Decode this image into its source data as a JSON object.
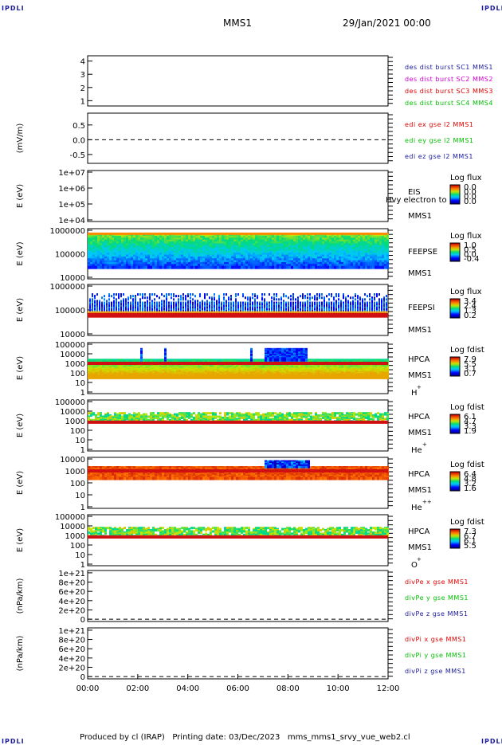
{
  "header": {
    "logo": "IPDLI",
    "title": "MMS1",
    "datetime": "29/Jan/2021 00:00"
  },
  "footer": {
    "text": "Produced by cl (IRAP)   Printing date: 03/Dec/2023   mms_mms1_srvy_vue_web2.cl"
  },
  "colors": {
    "series_blue": "#1a1aa0",
    "series_magenta": "#d000d0",
    "series_red": "#e00000",
    "series_green": "#00c000",
    "frame": "#000000"
  },
  "chart_data": [
    {
      "type": "scatter",
      "xlabel": "",
      "ylabel": "",
      "ylim": [
        0.6,
        4.4
      ],
      "yticks": [
        "1",
        "2",
        "3",
        "4"
      ],
      "legend": [
        {
          "label": "des dist burst SC1 MMS1",
          "color": "#1a1aa0"
        },
        {
          "label": "des dist burst SC2 MMS2",
          "color": "#d000d0"
        },
        {
          "label": "des dist burst SC3 MMS3",
          "color": "#e00000"
        },
        {
          "label": "des dist burst SC4 MMS4",
          "color": "#00c000"
        }
      ],
      "series": []
    },
    {
      "type": "line",
      "ylabel": "(mV/m)",
      "ylim": [
        -0.8,
        0.9
      ],
      "yticks": [
        "0.5",
        "0.0",
        "-0.5"
      ],
      "zero_line": true,
      "legend": [
        {
          "label": "edi ex gse l2 MMS1",
          "color": "#e00000"
        },
        {
          "label": "edi ey gse l2 MMS1",
          "color": "#00c000"
        },
        {
          "label": "edi ez gse l2 MMS1",
          "color": "#1a1aa0"
        }
      ],
      "series": []
    },
    {
      "type": "heatmap",
      "ylabel": "E (eV)",
      "log_y": true,
      "yticks": [
        "1e+07",
        "1e+06",
        "1e+05",
        "1e+04"
      ],
      "instrument": "EIS",
      "species": "Hvy electron to",
      "spacecraft": "MMS1",
      "colorbar_title": "Log flux",
      "colorbar_ticks": [
        "0.0",
        "0.0",
        "0.0",
        "0.0"
      ],
      "values": []
    },
    {
      "type": "heatmap",
      "ylabel": "E (eV)",
      "log_y": true,
      "yticks": [
        "1000000",
        "100000",
        "10000"
      ],
      "instrument": "FEEPSE",
      "spacecraft": "MMS1",
      "colorbar_title": "Log flux",
      "colorbar_ticks": [
        "1.0",
        "0.5",
        "0.0",
        "-0.4"
      ],
      "energy_range_eV": [
        30000,
        700000
      ]
    },
    {
      "type": "heatmap",
      "ylabel": "E (eV)",
      "log_y": true,
      "yticks": [
        "1000000",
        "100000",
        "10000"
      ],
      "instrument": "FEEPSI",
      "spacecraft": "MMS1",
      "colorbar_title": "Log flux",
      "colorbar_ticks": [
        "3.4",
        "2.4",
        "1.3",
        "0.2"
      ],
      "energy_range_eV": [
        50000,
        500000
      ]
    },
    {
      "type": "heatmap",
      "ylabel": "E (eV)",
      "log_y": true,
      "yticks": [
        "100000",
        "10000",
        "1000",
        "100",
        "10",
        "1"
      ],
      "instrument": "HPCA",
      "spacecraft": "MMS1",
      "species": "H",
      "species_charge": "+",
      "colorbar_title": "Log fdist",
      "colorbar_ticks": [
        "7.9",
        "5.5",
        "3.1",
        "0.7"
      ]
    },
    {
      "type": "heatmap",
      "ylabel": "E (eV)",
      "log_y": true,
      "yticks": [
        "100000",
        "10000",
        "1000",
        "100",
        "10",
        "1"
      ],
      "instrument": "HPCA",
      "spacecraft": "MMS1",
      "species": "He",
      "species_charge": "+",
      "colorbar_title": "Log fdist",
      "colorbar_ticks": [
        "6.1",
        "4.7",
        "3.3",
        "1.9"
      ]
    },
    {
      "type": "heatmap",
      "ylabel": "E (eV)",
      "log_y": true,
      "yticks": [
        "10000",
        "1000",
        "100",
        "10",
        "1"
      ],
      "instrument": "HPCA",
      "spacecraft": "MMS1",
      "species": "He",
      "species_charge": "++",
      "colorbar_title": "Log fdist",
      "colorbar_ticks": [
        "6.4",
        "4.8",
        "3.2",
        "1.6"
      ]
    },
    {
      "type": "heatmap",
      "ylabel": "E (eV)",
      "log_y": true,
      "yticks": [
        "100000",
        "10000",
        "1000",
        "100",
        "10",
        "1"
      ],
      "instrument": "HPCA",
      "spacecraft": "MMS1",
      "species": "O",
      "species_charge": "+",
      "colorbar_title": "Log fdist",
      "colorbar_ticks": [
        "7.3",
        "6.7",
        "6.1",
        "5.5"
      ]
    },
    {
      "type": "line",
      "ylabel": "(nPa/km)",
      "ylim": [
        -5e+19,
        1.05e+21
      ],
      "yticks": [
        "1e+21",
        "8e+20",
        "6e+20",
        "4e+20",
        "2e+20",
        "0"
      ],
      "zero_line": true,
      "legend": [
        {
          "label": "divPe x gse MMS1",
          "color": "#e00000"
        },
        {
          "label": "divPe y gse MMS1",
          "color": "#00c000"
        },
        {
          "label": "divPe z gse MMS1",
          "color": "#1a1aa0"
        }
      ],
      "series": []
    },
    {
      "type": "line",
      "ylabel": "(nPa/km)",
      "ylim": [
        -5e+19,
        1.05e+21
      ],
      "yticks": [
        "1e+21",
        "8e+20",
        "6e+20",
        "4e+20",
        "2e+20",
        "0"
      ],
      "zero_line": true,
      "legend": [
        {
          "label": "divPi x gse MMS1",
          "color": "#e00000"
        },
        {
          "label": "divPi y gse MMS1",
          "color": "#00c000"
        },
        {
          "label": "divPi z gse MMS1",
          "color": "#1a1aa0"
        }
      ],
      "series": []
    }
  ],
  "x_axis": {
    "ticks": [
      "00:00",
      "02:00",
      "04:00",
      "06:00",
      "08:00",
      "10:00",
      "12:00"
    ],
    "range_hours": [
      0,
      12
    ]
  }
}
